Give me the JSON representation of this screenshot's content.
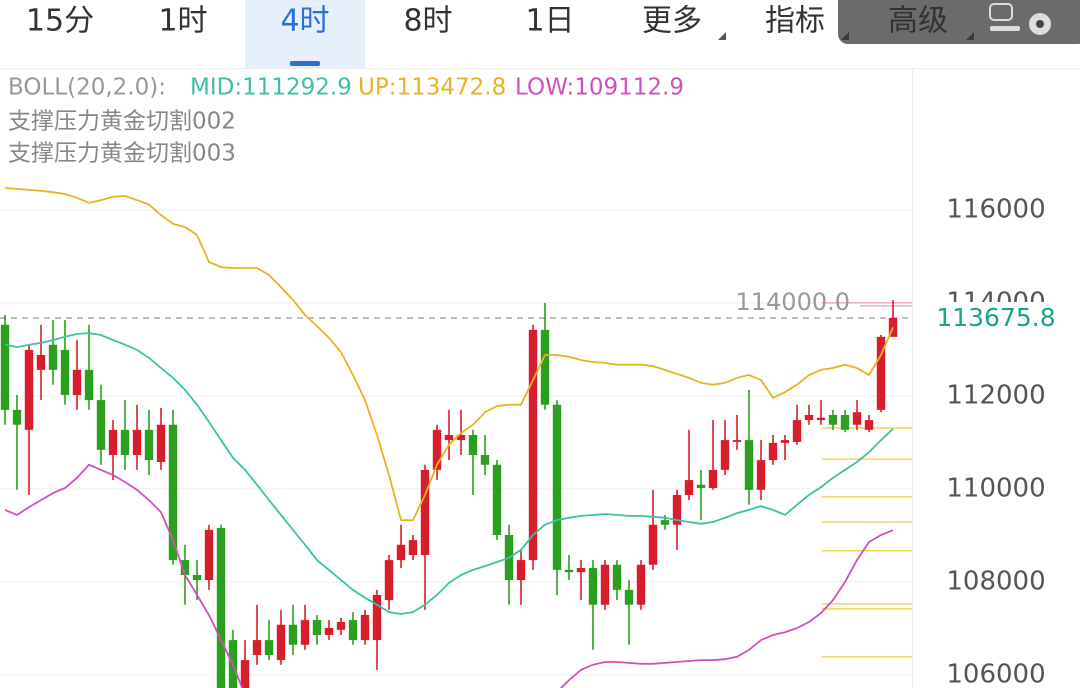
{
  "tabs": {
    "items": [
      "15分",
      "1时",
      "4时",
      "8时",
      "1日",
      "更多",
      "指标",
      "高级"
    ],
    "selected": 2
  },
  "chart_data": {
    "type": "candlestick",
    "indicator": "BOLL(20,2.0):",
    "annotations": [
      "支撑压力黄金切割002",
      "支撑压力黄金切割003"
    ],
    "up_color": "#d81e2c",
    "down_color": "#2aa01e",
    "open": [
      113530,
      111700,
      111270,
      112560,
      113100,
      112990,
      112020,
      112560,
      111910,
      110730,
      111270,
      110730,
      111270,
      110580,
      111380,
      108470,
      108150,
      108040,
      109160,
      106750,
      105720,
      106430,
      106750,
      106320,
      107080,
      106650,
      107180,
      106860,
      106970,
      107180,
      106750,
      106750,
      107610,
      108470,
      108580,
      108580,
      110410,
      111050,
      111050,
      111160,
      110730,
      110520,
      109010,
      108040,
      108470,
      113420,
      111810,
      108260,
      108210,
      108300,
      107510,
      108370,
      107830,
      107510,
      108370,
      109330,
      109230,
      109870,
      110090,
      110020,
      110410,
      111010,
      111050,
      109980,
      110620,
      110990,
      111010,
      111480,
      111480,
      111590,
      111590,
      111380,
      111270,
      111700,
      113270
    ],
    "high": [
      113740,
      112020,
      113100,
      113530,
      113630,
      113630,
      113200,
      113530,
      112240,
      111480,
      111910,
      111810,
      111700,
      111740,
      111700,
      108800,
      108470,
      109230,
      109230,
      106970,
      106750,
      107510,
      107180,
      107400,
      107510,
      107510,
      107290,
      107180,
      107230,
      107350,
      107400,
      107830,
      108580,
      109230,
      109010,
      110520,
      111380,
      111700,
      111700,
      111270,
      111160,
      110620,
      109230,
      108690,
      113530,
      114000,
      111910,
      108580,
      108470,
      108470,
      108470,
      108470,
      108040,
      108470,
      109980,
      109440,
      109980,
      111270,
      110410,
      111480,
      111480,
      111590,
      112130,
      111050,
      111160,
      111160,
      111810,
      111810,
      111910,
      111700,
      111700,
      111910,
      111590,
      113310,
      114060
    ],
    "low": [
      111380,
      109980,
      109870,
      111910,
      112240,
      111810,
      111700,
      111700,
      110520,
      110190,
      110410,
      110410,
      110300,
      110410,
      108370,
      107510,
      107610,
      107830,
      105680,
      105460,
      105460,
      106220,
      106320,
      106220,
      106430,
      106540,
      106650,
      106750,
      106860,
      106650,
      106650,
      106110,
      107400,
      108300,
      108470,
      107400,
      110190,
      110620,
      110730,
      109870,
      110300,
      108900,
      107510,
      107510,
      108260,
      111700,
      107720,
      108040,
      107610,
      106540,
      107400,
      107610,
      106650,
      107400,
      108260,
      109120,
      108690,
      109760,
      109330,
      109980,
      110300,
      110840,
      109660,
      109760,
      110520,
      110620,
      110950,
      111380,
      111380,
      111270,
      111220,
      111270,
      111220,
      111650,
      113310
    ],
    "close": [
      111700,
      111380,
      112990,
      112880,
      112560,
      112020,
      112560,
      111910,
      110840,
      111270,
      110730,
      111270,
      110620,
      111380,
      108470,
      108150,
      108040,
      109120,
      105720,
      105680,
      106320,
      106750,
      106430,
      107080,
      106650,
      107180,
      106860,
      107010,
      107140,
      106750,
      107290,
      107720,
      108470,
      108800,
      108900,
      110410,
      111270,
      111160,
      111160,
      110730,
      110520,
      109010,
      108040,
      108470,
      113420,
      111810,
      108260,
      108210,
      108300,
      107510,
      108370,
      107830,
      107510,
      108370,
      109230,
      109230,
      109870,
      110190,
      110020,
      110410,
      111050,
      111050,
      109980,
      110620,
      110990,
      111050,
      111480,
      111590,
      111530,
      111380,
      111270,
      111650,
      111480,
      113270,
      113675.8
    ],
    "series": [
      {
        "name": "MID:111292.9",
        "color": "#3fbfa6",
        "values": [
          113100,
          113050,
          113100,
          113140,
          113200,
          113270,
          113330,
          113350,
          113310,
          113200,
          113100,
          112990,
          112820,
          112600,
          112390,
          112130,
          111810,
          111440,
          111050,
          110670,
          110410,
          110090,
          109760,
          109440,
          109120,
          108800,
          108470,
          108260,
          108040,
          107830,
          107660,
          107510,
          107350,
          107310,
          107350,
          107510,
          107720,
          107980,
          108150,
          108260,
          108340,
          108430,
          108520,
          108690,
          109010,
          109230,
          109330,
          109380,
          109420,
          109440,
          109460,
          109440,
          109420,
          109420,
          109400,
          109380,
          109330,
          109290,
          109250,
          109290,
          109380,
          109480,
          109550,
          109630,
          109550,
          109440,
          109660,
          109870,
          110040,
          110240,
          110410,
          110580,
          110790,
          111050,
          111292.9
        ]
      },
      {
        "name": "UP:113472.8",
        "color": "#e6b422",
        "values": [
          116470,
          116450,
          116430,
          116410,
          116380,
          116340,
          116260,
          116150,
          116210,
          116280,
          116300,
          116210,
          116110,
          115890,
          115700,
          115630,
          115460,
          114880,
          114770,
          114750,
          114750,
          114750,
          114600,
          114340,
          114060,
          113740,
          113500,
          113250,
          112940,
          112450,
          111910,
          111160,
          110300,
          109330,
          109330,
          109870,
          110520,
          110950,
          111200,
          111380,
          111650,
          111780,
          111810,
          111810,
          112340,
          112880,
          112880,
          112840,
          112770,
          112730,
          112710,
          112670,
          112670,
          112670,
          112640,
          112560,
          112470,
          112390,
          112280,
          112240,
          112280,
          112390,
          112450,
          112340,
          111960,
          112080,
          112240,
          112450,
          112560,
          112600,
          112670,
          112600,
          112450,
          112880,
          113472.8
        ]
      },
      {
        "name": "LOW:109112.9",
        "color": "#d050b8",
        "values": [
          109550,
          109440,
          109610,
          109760,
          109910,
          110020,
          110240,
          110520,
          110410,
          110300,
          110150,
          109980,
          109760,
          109500,
          108900,
          108150,
          107720,
          107290,
          106750,
          106220,
          105570,
          null,
          null,
          null,
          null,
          null,
          null,
          null,
          null,
          null,
          null,
          null,
          null,
          null,
          null,
          null,
          null,
          null,
          null,
          null,
          null,
          null,
          null,
          null,
          null,
          null,
          105630,
          105890,
          106110,
          106220,
          106280,
          106280,
          106260,
          106240,
          106240,
          106260,
          106280,
          106300,
          106320,
          106320,
          106340,
          106390,
          106540,
          106750,
          106860,
          106920,
          107010,
          107140,
          107330,
          107610,
          108000,
          108470,
          108860,
          109010,
          109112.9
        ]
      }
    ],
    "level_lines": [
      {
        "value": 114000,
        "label": "114000.0",
        "color": "#eab0bf"
      },
      {
        "value": 111310,
        "color": "#f0d45a"
      },
      {
        "value": 110640,
        "color": "#f0d45a"
      },
      {
        "value": 109830,
        "color": "#f0d45a"
      },
      {
        "value": 109290,
        "color": "#f0d45a"
      },
      {
        "value": 108670,
        "color": "#f0d45a"
      },
      {
        "value": 107530,
        "color": "#f0d45a"
      },
      {
        "value": 107420,
        "color": "#f0d45a"
      },
      {
        "value": 106390,
        "color": "#f0d45a"
      }
    ],
    "current_price": 113675.8,
    "current_price_color": "#1aa48a",
    "ylim": [
      105720,
      119050
    ],
    "yticks": [
      106000,
      108000,
      110000,
      112000,
      114000,
      116000
    ],
    "grid": true
  }
}
